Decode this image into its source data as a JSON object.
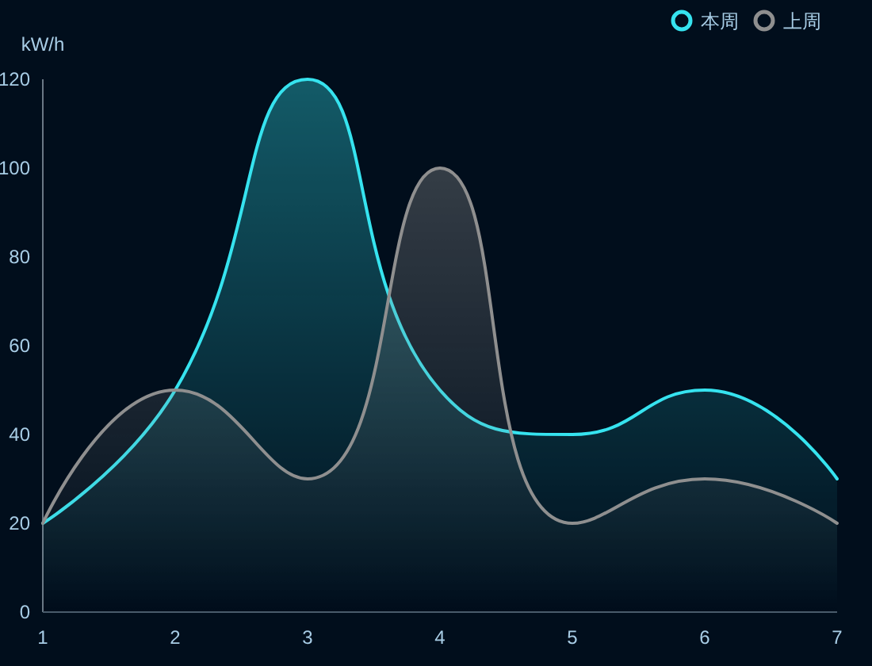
{
  "chart_data": {
    "type": "area",
    "ylabel": "kW/h",
    "categories": [
      "1",
      "2",
      "3",
      "4",
      "5",
      "6",
      "7"
    ],
    "series": [
      {
        "name": "本周",
        "color": "#36e3ef",
        "values": [
          20,
          50,
          120,
          50,
          40,
          50,
          30
        ]
      },
      {
        "name": "上周",
        "color": "#8f8f8f",
        "values": [
          20,
          50,
          30,
          100,
          20,
          30,
          20
        ]
      }
    ],
    "ylim": [
      0,
      120
    ],
    "yticks": [
      0,
      20,
      40,
      60,
      80,
      100,
      120
    ],
    "legend": "top right"
  }
}
